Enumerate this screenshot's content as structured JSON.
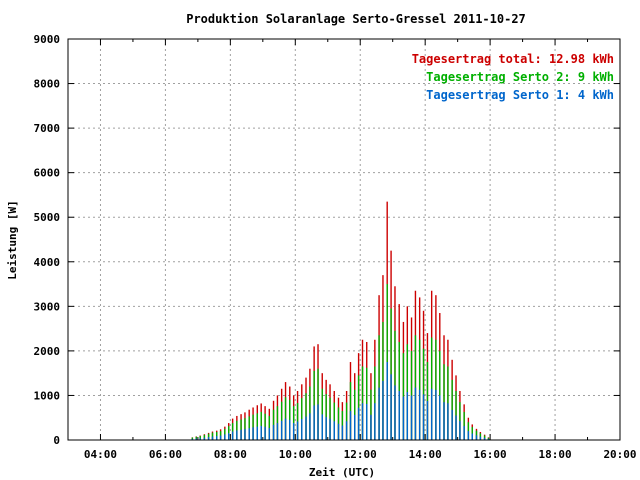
{
  "chart_data": {
    "type": "bar",
    "title": "Produktion Solaranlage Serto-Gressel 2011-10-27",
    "xlabel": "Zeit (UTC)",
    "ylabel": "Leistung [W]",
    "xlim": [
      3,
      20
    ],
    "ylim": [
      0,
      9000
    ],
    "x_ticks": [
      {
        "value": 4,
        "label": "04:00"
      },
      {
        "value": 6,
        "label": "06:00"
      },
      {
        "value": 8,
        "label": "08:00"
      },
      {
        "value": 10,
        "label": "10:00"
      },
      {
        "value": 12,
        "label": "12:00"
      },
      {
        "value": 14,
        "label": "14:00"
      },
      {
        "value": 16,
        "label": "16:00"
      },
      {
        "value": 18,
        "label": "18:00"
      },
      {
        "value": 20,
        "label": "20:00"
      }
    ],
    "y_ticks": [
      {
        "value": 0,
        "label": "0"
      },
      {
        "value": 1000,
        "label": "1000"
      },
      {
        "value": 2000,
        "label": "2000"
      },
      {
        "value": 3000,
        "label": "3000"
      },
      {
        "value": 4000,
        "label": "4000"
      },
      {
        "value": 5000,
        "label": "5000"
      },
      {
        "value": 6000,
        "label": "6000"
      },
      {
        "value": 7000,
        "label": "7000"
      },
      {
        "value": 8000,
        "label": "8000"
      },
      {
        "value": 9000,
        "label": "9000"
      }
    ],
    "grid": true,
    "legend_position": "top-right",
    "legend": [
      {
        "text": "Tagesertrag total: 12.98 kWh",
        "color": "#cc0000"
      },
      {
        "text": "Tagesertrag Serto 2: 9 kWh",
        "color": "#00b000"
      },
      {
        "text": "Tagesertrag Serto 1: 4 kWh",
        "color": "#0066cc"
      }
    ],
    "series_colors": {
      "total": "#cc0000",
      "serto2": "#00b000",
      "serto1": "#0066cc"
    },
    "x": [
      6.83,
      6.95,
      7.07,
      7.2,
      7.33,
      7.45,
      7.58,
      7.7,
      7.83,
      7.95,
      8.07,
      8.2,
      8.33,
      8.45,
      8.58,
      8.7,
      8.83,
      8.95,
      9.07,
      9.2,
      9.33,
      9.45,
      9.58,
      9.7,
      9.83,
      9.95,
      10.07,
      10.2,
      10.33,
      10.45,
      10.58,
      10.7,
      10.83,
      10.95,
      11.07,
      11.2,
      11.33,
      11.45,
      11.58,
      11.7,
      11.83,
      11.95,
      12.07,
      12.2,
      12.33,
      12.45,
      12.58,
      12.7,
      12.83,
      12.95,
      13.07,
      13.2,
      13.33,
      13.45,
      13.58,
      13.7,
      13.83,
      13.95,
      14.07,
      14.2,
      14.33,
      14.45,
      14.58,
      14.7,
      14.83,
      14.95,
      15.07,
      15.2,
      15.33,
      15.45,
      15.58,
      15.7,
      15.83,
      15.95
    ],
    "series": [
      {
        "key": "total",
        "values": [
          60,
          80,
          100,
          130,
          160,
          190,
          210,
          240,
          300,
          380,
          480,
          540,
          580,
          620,
          680,
          730,
          780,
          820,
          760,
          700,
          880,
          1000,
          1150,
          1300,
          1200,
          1000,
          1100,
          1250,
          1400,
          1600,
          2100,
          2150,
          1500,
          1350,
          1250,
          1100,
          950,
          850,
          1100,
          1750,
          1500,
          1950,
          2250,
          2200,
          1500,
          2250,
          3250,
          3700,
          5350,
          4250,
          3450,
          3050,
          2650,
          3000,
          2750,
          3350,
          3200,
          2900,
          2400,
          3350,
          3250,
          2850,
          2350,
          2250,
          1800,
          1450,
          1100,
          800,
          500,
          350,
          250,
          180,
          120,
          60
        ]
      },
      {
        "key": "serto2",
        "values": [
          55,
          72,
          90,
          115,
          140,
          165,
          180,
          200,
          250,
          310,
          380,
          430,
          460,
          490,
          530,
          570,
          600,
          630,
          590,
          540,
          680,
          760,
          860,
          960,
          900,
          760,
          830,
          940,
          1050,
          1200,
          1550,
          1600,
          1150,
          1030,
          950,
          840,
          730,
          650,
          840,
          1300,
          1130,
          1450,
          1650,
          1620,
          1130,
          1650,
          2350,
          2650,
          3500,
          2950,
          2450,
          2200,
          1950,
          2150,
          2000,
          2350,
          2250,
          2050,
          1750,
          2300,
          2250,
          2000,
          1700,
          1650,
          1350,
          1100,
          850,
          630,
          400,
          290,
          210,
          150,
          100,
          50
        ]
      },
      {
        "key": "serto1",
        "values": [
          25,
          32,
          40,
          52,
          65,
          78,
          88,
          100,
          125,
          155,
          190,
          215,
          230,
          245,
          265,
          285,
          300,
          315,
          295,
          270,
          340,
          380,
          430,
          480,
          450,
          380,
          415,
          470,
          525,
          600,
          775,
          800,
          575,
          515,
          475,
          420,
          365,
          325,
          420,
          650,
          565,
          725,
          825,
          810,
          565,
          825,
          1175,
          1325,
          1750,
          1475,
          1225,
          1100,
          975,
          1075,
          1000,
          1175,
          1125,
          1025,
          875,
          1150,
          1125,
          1000,
          850,
          825,
          675,
          550,
          425,
          315,
          200,
          145,
          105,
          75,
          50,
          25
        ]
      }
    ]
  }
}
